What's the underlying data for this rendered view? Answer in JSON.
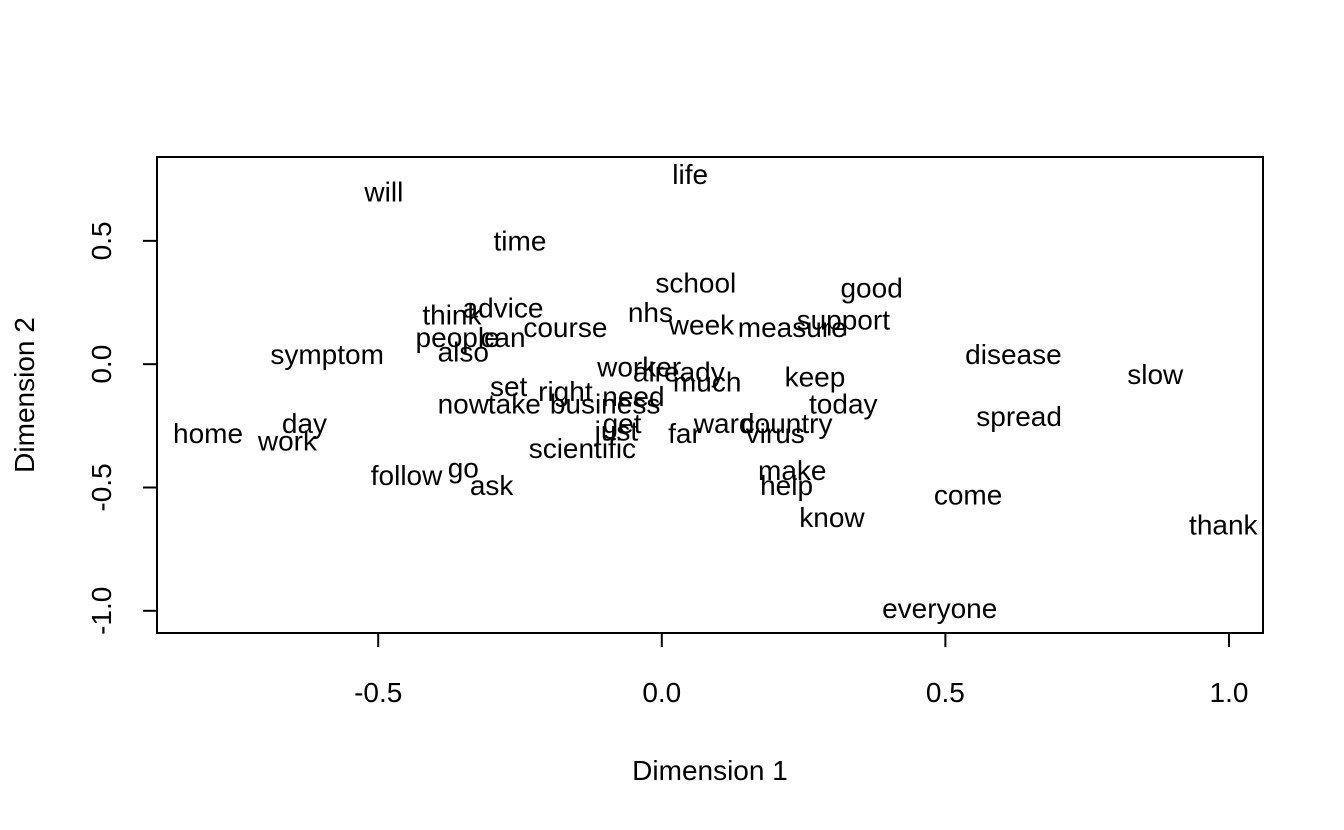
{
  "chart_data": {
    "type": "scatter",
    "title": "",
    "xlabel": "Dimension 1",
    "ylabel": "Dimension 2",
    "xlim": [
      -0.89,
      1.06
    ],
    "ylim": [
      -1.09,
      0.84
    ],
    "xticks": [
      -0.5,
      0.0,
      0.5,
      1.0
    ],
    "xtick_labels": [
      "-0.5",
      "0.0",
      "0.5",
      "1.0"
    ],
    "yticks": [
      -1.0,
      -0.5,
      0.0,
      0.5
    ],
    "ytick_labels": [
      "-1.0",
      "-0.5",
      "0.0",
      "0.5"
    ],
    "grid": false,
    "legend": "none",
    "text_color": "#000000",
    "points": [
      {
        "label": "life",
        "x": 0.05,
        "y": 0.76
      },
      {
        "label": "will",
        "x": -0.49,
        "y": 0.69
      },
      {
        "label": "time",
        "x": -0.25,
        "y": 0.49
      },
      {
        "label": "school",
        "x": 0.06,
        "y": 0.32
      },
      {
        "label": "good",
        "x": 0.37,
        "y": 0.3
      },
      {
        "label": "think",
        "x": -0.37,
        "y": 0.19
      },
      {
        "label": "advice",
        "x": -0.28,
        "y": 0.22
      },
      {
        "label": "nhs",
        "x": -0.02,
        "y": 0.2
      },
      {
        "label": "week",
        "x": 0.07,
        "y": 0.15
      },
      {
        "label": "support",
        "x": 0.32,
        "y": 0.17
      },
      {
        "label": "measure",
        "x": 0.23,
        "y": 0.14
      },
      {
        "label": "course",
        "x": -0.17,
        "y": 0.14
      },
      {
        "label": "people",
        "x": -0.36,
        "y": 0.1
      },
      {
        "label": "can",
        "x": -0.28,
        "y": 0.1
      },
      {
        "label": "also",
        "x": -0.35,
        "y": 0.04
      },
      {
        "label": "symptom",
        "x": -0.59,
        "y": 0.03
      },
      {
        "label": "disease",
        "x": 0.62,
        "y": 0.03
      },
      {
        "label": "slow",
        "x": 0.87,
        "y": -0.05
      },
      {
        "label": "worker",
        "x": -0.04,
        "y": -0.02
      },
      {
        "label": "already",
        "x": 0.03,
        "y": -0.04
      },
      {
        "label": "much",
        "x": 0.08,
        "y": -0.08
      },
      {
        "label": "keep",
        "x": 0.27,
        "y": -0.06
      },
      {
        "label": "set",
        "x": -0.27,
        "y": -0.1
      },
      {
        "label": "right",
        "x": -0.17,
        "y": -0.12
      },
      {
        "label": "need",
        "x": -0.05,
        "y": -0.14
      },
      {
        "label": "now",
        "x": -0.35,
        "y": -0.17
      },
      {
        "label": "take",
        "x": -0.26,
        "y": -0.17
      },
      {
        "label": "business",
        "x": -0.1,
        "y": -0.17
      },
      {
        "label": "today",
        "x": 0.32,
        "y": -0.17
      },
      {
        "label": "spread",
        "x": 0.63,
        "y": -0.22
      },
      {
        "label": "day",
        "x": -0.63,
        "y": -0.25
      },
      {
        "label": "get",
        "x": -0.07,
        "y": -0.25
      },
      {
        "label": "just",
        "x": -0.08,
        "y": -0.28
      },
      {
        "label": "ward",
        "x": 0.11,
        "y": -0.25
      },
      {
        "label": "country",
        "x": 0.22,
        "y": -0.25
      },
      {
        "label": "far",
        "x": 0.04,
        "y": -0.29
      },
      {
        "label": "virus",
        "x": 0.2,
        "y": -0.29
      },
      {
        "label": "home",
        "x": -0.8,
        "y": -0.29
      },
      {
        "label": "work",
        "x": -0.66,
        "y": -0.32
      },
      {
        "label": "scientific",
        "x": -0.14,
        "y": -0.35
      },
      {
        "label": "go",
        "x": -0.35,
        "y": -0.43
      },
      {
        "label": "follow",
        "x": -0.45,
        "y": -0.46
      },
      {
        "label": "ask",
        "x": -0.3,
        "y": -0.5
      },
      {
        "label": "make",
        "x": 0.23,
        "y": -0.44
      },
      {
        "label": "help",
        "x": 0.22,
        "y": -0.5
      },
      {
        "label": "come",
        "x": 0.54,
        "y": -0.54
      },
      {
        "label": "know",
        "x": 0.3,
        "y": -0.63
      },
      {
        "label": "thank",
        "x": 0.99,
        "y": -0.66
      },
      {
        "label": "everyone",
        "x": 0.49,
        "y": -1.0
      }
    ]
  }
}
